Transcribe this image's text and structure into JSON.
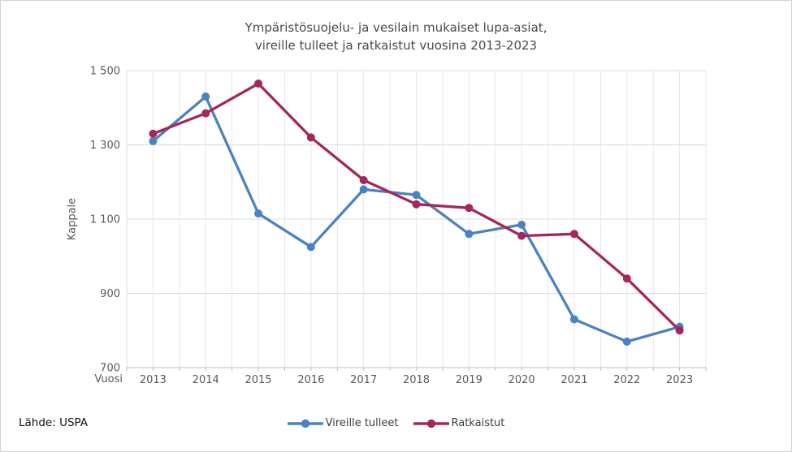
{
  "title": {
    "line1": "Ympäristösuojelu- ja vesilain mukaiset lupa-asiat,",
    "line2": "vireille tulleet ja ratkaistut vuosina 2013-2023"
  },
  "source": {
    "label": "Lähde: USPA"
  },
  "colors": {
    "series_blue": "#4a82c2",
    "series_red": "#a5265b",
    "grid_horizontal": "#dcdcdc",
    "grid_vertical": "#e7e7e7",
    "axis_line": "#bdbdbd",
    "tick_text": "#595959",
    "title_text": "#4a4a4a"
  },
  "chart_data": {
    "type": "line",
    "title": "Ympäristösuojelu- ja vesilain mukaiset lupa-asiat, vireille tulleet ja ratkaistut vuosina 2013-2023",
    "xlabel": "Vuosi",
    "ylabel": "Kappale",
    "categories": [
      "2013",
      "2014",
      "2015",
      "2016",
      "2017",
      "2018",
      "2019",
      "2020",
      "2021",
      "2022",
      "2023"
    ],
    "series": [
      {
        "name": "Vireille tulleet",
        "color": "#4a82c2",
        "values": [
          1310,
          1430,
          1115,
          1025,
          1180,
          1165,
          1060,
          1085,
          830,
          770,
          810
        ]
      },
      {
        "name": "Ratkaistut",
        "color": "#a5265b",
        "values": [
          1330,
          1385,
          1465,
          1320,
          1205,
          1140,
          1130,
          1055,
          1060,
          940,
          800
        ]
      }
    ],
    "ylim": [
      700,
      1500
    ],
    "yticks": [
      {
        "value": 1500,
        "label": "1 500"
      },
      {
        "value": 1300,
        "label": "1 300"
      },
      {
        "value": 1100,
        "label": "1 100"
      },
      {
        "value": 900,
        "label": "900"
      },
      {
        "value": 700,
        "label": "700"
      }
    ],
    "grid": {
      "horizontal": true,
      "vertical": true,
      "vertical_lines_per_category": 2
    },
    "legend_position": "bottom-center",
    "marker": "circle"
  }
}
